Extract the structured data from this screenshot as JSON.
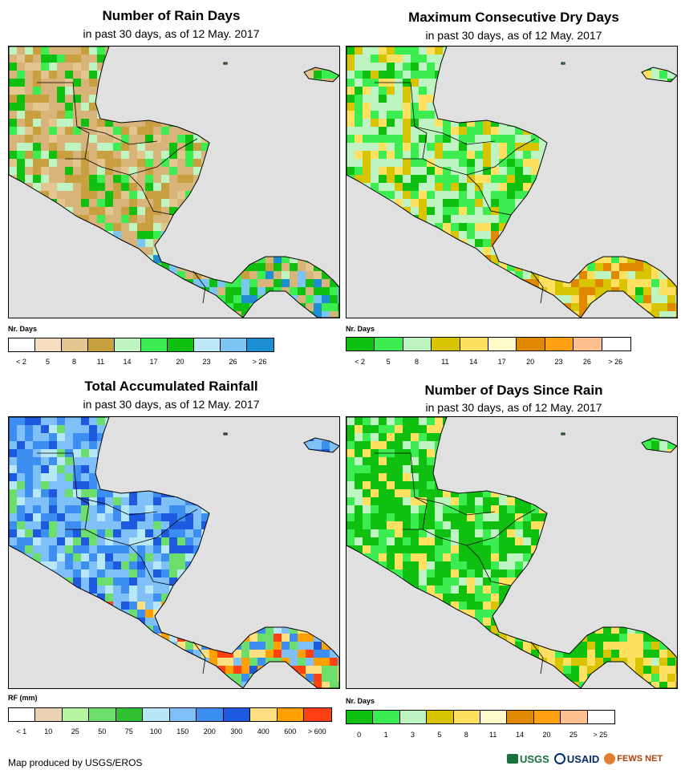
{
  "panels": [
    {
      "id": "rain-days",
      "title": "Number of Rain Days",
      "subtitle": "in past 30 days, as of 12 May. 2017",
      "legend_title": "Nr. Days",
      "legend_colors": [
        "#ffffff",
        "#f5dfc0",
        "#e3c590",
        "#c8a040",
        "#bdf4c1",
        "#3ced52",
        "#10c010",
        "#bde8f5",
        "#7bc5f2",
        "#1c8ed1"
      ],
      "legend_labels": [
        "< 2",
        "5",
        "8",
        "11",
        "14",
        "17",
        "20",
        "23",
        "26",
        "> 26"
      ],
      "map_palette": [
        "#d8b47a",
        "#c8a040",
        "#e3c590",
        "#bdf4c1",
        "#3ced52",
        "#10c010",
        "#7bc5f2",
        "#1c8ed1"
      ],
      "map_weights": [
        3,
        2,
        1,
        1,
        1,
        1,
        0,
        0
      ]
    },
    {
      "id": "max-dry-days",
      "title": "Maximum Consecutive Dry Days",
      "subtitle": "in past 30 days, as of 12 May. 2017",
      "legend_title": "Nr. Days",
      "legend_colors": [
        "#10c010",
        "#3ced52",
        "#bdf4c1",
        "#d8c400",
        "#ffe060",
        "#fffac8",
        "#e08800",
        "#ffa010",
        "#ffc090",
        "#ffffff"
      ],
      "legend_labels": [
        "< 2",
        "5",
        "8",
        "11",
        "14",
        "17",
        "20",
        "23",
        "26",
        "> 26"
      ],
      "map_palette": [
        "#10c010",
        "#3ced52",
        "#bdf4c1",
        "#d8c400",
        "#ffe060",
        "#e08800"
      ],
      "map_weights": [
        1,
        2,
        3,
        1,
        1,
        0
      ]
    },
    {
      "id": "total-rainfall",
      "title": "Total Accumulated Rainfall",
      "subtitle": "in past 30 days, as of 12 May. 2017",
      "legend_title": "RF (mm)",
      "legend_colors": [
        "#ffffff",
        "#ebd2b0",
        "#b5f5a0",
        "#6cde6c",
        "#30c030",
        "#b8e8f8",
        "#80c0f8",
        "#3c8ef0",
        "#1e5ae0",
        "#ffe080",
        "#ffa000",
        "#ff4010"
      ],
      "legend_labels": [
        "< 1",
        "10",
        "25",
        "50",
        "75",
        "100",
        "150",
        "200",
        "300",
        "400",
        "600",
        "> 600"
      ],
      "map_palette": [
        "#80c0f8",
        "#3c8ef0",
        "#1e5ae0",
        "#b8e8f8",
        "#6cde6c",
        "#ffe080",
        "#ffa000",
        "#ff4010"
      ],
      "map_weights": [
        3,
        2,
        1,
        1,
        1,
        0,
        0,
        0
      ]
    },
    {
      "id": "days-since-rain",
      "title": "Number of Days Since Rain",
      "subtitle": "in past 30 days, as of 12 May. 2017",
      "legend_title": "Nr. Days",
      "legend_colors": [
        "#10c010",
        "#3ced52",
        "#bdf4c1",
        "#d8c400",
        "#ffe060",
        "#fffac8",
        "#e08800",
        "#ffa010",
        "#ffc090",
        "#ffffff"
      ],
      "legend_labels": [
        "0",
        "1",
        "3",
        "5",
        "8",
        "11",
        "14",
        "20",
        "25",
        "> 25"
      ],
      "map_palette": [
        "#10c010",
        "#3ced52",
        "#bdf4c1",
        "#ffe060",
        "#d8c400"
      ],
      "map_weights": [
        4,
        2,
        1,
        1,
        0
      ]
    }
  ],
  "ocean_color": "#e0e0e0",
  "credit": "Map produced by USGS/EROS",
  "logos": [
    "USGS",
    "USAID",
    "FEWS NET"
  ]
}
